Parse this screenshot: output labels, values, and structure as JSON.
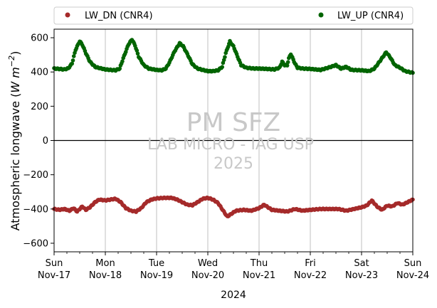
{
  "chart_data": {
    "type": "scatter",
    "ylabel_prefix": "Atmospheric longwave (",
    "ylabel_unit_main": "W m",
    "ylabel_unit_exp": "−2",
    "ylabel_suffix": ")",
    "xlabel": "2024",
    "ylim": [
      -650,
      650
    ],
    "xlim": [
      0,
      7
    ],
    "grid": "vertical at day ticks",
    "legend_placement": "top, above plot",
    "y_ticks": [
      600,
      400,
      200,
      0,
      -200,
      -400,
      -600
    ],
    "x_ticks": [
      {
        "x": 0,
        "day": "Sun",
        "date": "Nov-17"
      },
      {
        "x": 1,
        "day": "Mon",
        "date": "Nov-18"
      },
      {
        "x": 2,
        "day": "Tue",
        "date": "Nov-19"
      },
      {
        "x": 3,
        "day": "Wed",
        "date": "Nov-20"
      },
      {
        "x": 4,
        "day": "Thu",
        "date": "Nov-21"
      },
      {
        "x": 5,
        "day": "Fri",
        "date": "Nov-22"
      },
      {
        "x": 6,
        "day": "Sat",
        "date": "Nov-23"
      },
      {
        "x": 7,
        "day": "Sun",
        "date": "Nov-24"
      }
    ],
    "watermark": [
      "PM SFZ",
      "LAB MICRO - IAG USP",
      "2025"
    ],
    "series": [
      {
        "name": "LW_DN (CNR4)",
        "color": "#a52a2a",
        "points": [
          [
            0.0,
            -400
          ],
          [
            0.1,
            -405
          ],
          [
            0.2,
            -400
          ],
          [
            0.3,
            -410
          ],
          [
            0.38,
            -395
          ],
          [
            0.45,
            -415
          ],
          [
            0.55,
            -385
          ],
          [
            0.62,
            -405
          ],
          [
            0.7,
            -390
          ],
          [
            0.8,
            -360
          ],
          [
            0.88,
            -345
          ],
          [
            1.0,
            -350
          ],
          [
            1.1,
            -345
          ],
          [
            1.2,
            -340
          ],
          [
            1.3,
            -360
          ],
          [
            1.4,
            -395
          ],
          [
            1.5,
            -410
          ],
          [
            1.6,
            -415
          ],
          [
            1.7,
            -395
          ],
          [
            1.8,
            -360
          ],
          [
            1.9,
            -345
          ],
          [
            2.0,
            -338
          ],
          [
            2.15,
            -335
          ],
          [
            2.3,
            -335
          ],
          [
            2.4,
            -345
          ],
          [
            2.5,
            -360
          ],
          [
            2.6,
            -375
          ],
          [
            2.7,
            -378
          ],
          [
            2.8,
            -360
          ],
          [
            2.9,
            -340
          ],
          [
            3.0,
            -335
          ],
          [
            3.1,
            -345
          ],
          [
            3.2,
            -365
          ],
          [
            3.3,
            -410
          ],
          [
            3.38,
            -445
          ],
          [
            3.45,
            -430
          ],
          [
            3.55,
            -410
          ],
          [
            3.7,
            -405
          ],
          [
            3.85,
            -410
          ],
          [
            4.0,
            -395
          ],
          [
            4.1,
            -375
          ],
          [
            4.25,
            -405
          ],
          [
            4.4,
            -410
          ],
          [
            4.55,
            -415
          ],
          [
            4.7,
            -400
          ],
          [
            4.85,
            -410
          ],
          [
            5.0,
            -405
          ],
          [
            5.2,
            -400
          ],
          [
            5.4,
            -400
          ],
          [
            5.55,
            -400
          ],
          [
            5.7,
            -410
          ],
          [
            5.85,
            -400
          ],
          [
            6.0,
            -390
          ],
          [
            6.1,
            -380
          ],
          [
            6.2,
            -350
          ],
          [
            6.3,
            -385
          ],
          [
            6.4,
            -405
          ],
          [
            6.5,
            -380
          ],
          [
            6.6,
            -385
          ],
          [
            6.7,
            -365
          ],
          [
            6.8,
            -375
          ],
          [
            6.9,
            -360
          ],
          [
            7.0,
            -345
          ]
        ]
      },
      {
        "name": "LW_UP (CNR4)",
        "color": "#006400",
        "points": [
          [
            0.0,
            420
          ],
          [
            0.1,
            418
          ],
          [
            0.2,
            415
          ],
          [
            0.28,
            422
          ],
          [
            0.35,
            450
          ],
          [
            0.42,
            530
          ],
          [
            0.5,
            580
          ],
          [
            0.55,
            560
          ],
          [
            0.62,
            510
          ],
          [
            0.7,
            460
          ],
          [
            0.8,
            430
          ],
          [
            0.9,
            422
          ],
          [
            1.0,
            415
          ],
          [
            1.1,
            412
          ],
          [
            1.2,
            410
          ],
          [
            1.28,
            420
          ],
          [
            1.35,
            480
          ],
          [
            1.45,
            560
          ],
          [
            1.52,
            590
          ],
          [
            1.58,
            555
          ],
          [
            1.65,
            490
          ],
          [
            1.75,
            440
          ],
          [
            1.85,
            420
          ],
          [
            2.0,
            412
          ],
          [
            2.1,
            410
          ],
          [
            2.18,
            420
          ],
          [
            2.25,
            455
          ],
          [
            2.35,
            520
          ],
          [
            2.45,
            568
          ],
          [
            2.52,
            550
          ],
          [
            2.6,
            505
          ],
          [
            2.7,
            445
          ],
          [
            2.8,
            420
          ],
          [
            2.9,
            412
          ],
          [
            3.0,
            405
          ],
          [
            3.1,
            405
          ],
          [
            3.2,
            410
          ],
          [
            3.28,
            430
          ],
          [
            3.35,
            510
          ],
          [
            3.43,
            578
          ],
          [
            3.5,
            550
          ],
          [
            3.58,
            490
          ],
          [
            3.65,
            440
          ],
          [
            3.75,
            425
          ],
          [
            3.9,
            420
          ],
          [
            4.0,
            420
          ],
          [
            4.15,
            418
          ],
          [
            4.3,
            415
          ],
          [
            4.4,
            425
          ],
          [
            4.45,
            460
          ],
          [
            4.5,
            440
          ],
          [
            4.55,
            440
          ],
          [
            4.58,
            480
          ],
          [
            4.62,
            505
          ],
          [
            4.7,
            450
          ],
          [
            4.75,
            425
          ],
          [
            4.85,
            420
          ],
          [
            5.0,
            418
          ],
          [
            5.2,
            412
          ],
          [
            5.35,
            425
          ],
          [
            5.5,
            440
          ],
          [
            5.6,
            420
          ],
          [
            5.7,
            430
          ],
          [
            5.8,
            412
          ],
          [
            6.0,
            410
          ],
          [
            6.15,
            405
          ],
          [
            6.25,
            420
          ],
          [
            6.35,
            460
          ],
          [
            6.48,
            515
          ],
          [
            6.55,
            490
          ],
          [
            6.65,
            440
          ],
          [
            6.75,
            425
          ],
          [
            6.85,
            405
          ],
          [
            7.0,
            395
          ]
        ]
      }
    ]
  }
}
